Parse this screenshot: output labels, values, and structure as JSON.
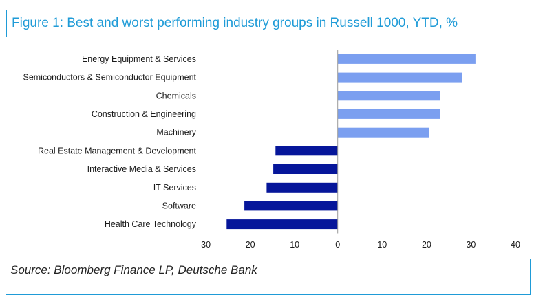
{
  "chart_data": {
    "type": "bar",
    "orientation": "horizontal",
    "title": "Figure 1: Best and worst performing industry groups in Russell 1000, YTD, %",
    "categories": [
      "Energy Equipment & Services",
      "Semiconductors & Semiconductor Equipment",
      "Chemicals",
      "Construction & Engineering",
      "Machinery",
      "Real Estate Management & Development",
      "Interactive Media & Services",
      "IT Services",
      "Software",
      "Health Care Technology"
    ],
    "values": [
      31,
      28,
      23,
      23,
      20.5,
      -14,
      -14.5,
      -16,
      -21,
      -25
    ],
    "xlim": [
      -30,
      40
    ],
    "xticks": [
      -30,
      -20,
      -10,
      0,
      10,
      20,
      30,
      40
    ],
    "colors": {
      "positive": "#7b9ff0",
      "negative": "#06169a",
      "axis": "#9a9a9a"
    },
    "grid": false,
    "legend": "none",
    "xlabel": "",
    "ylabel": ""
  },
  "source": "Source: Bloomberg Finance LP, Deutsche Bank"
}
